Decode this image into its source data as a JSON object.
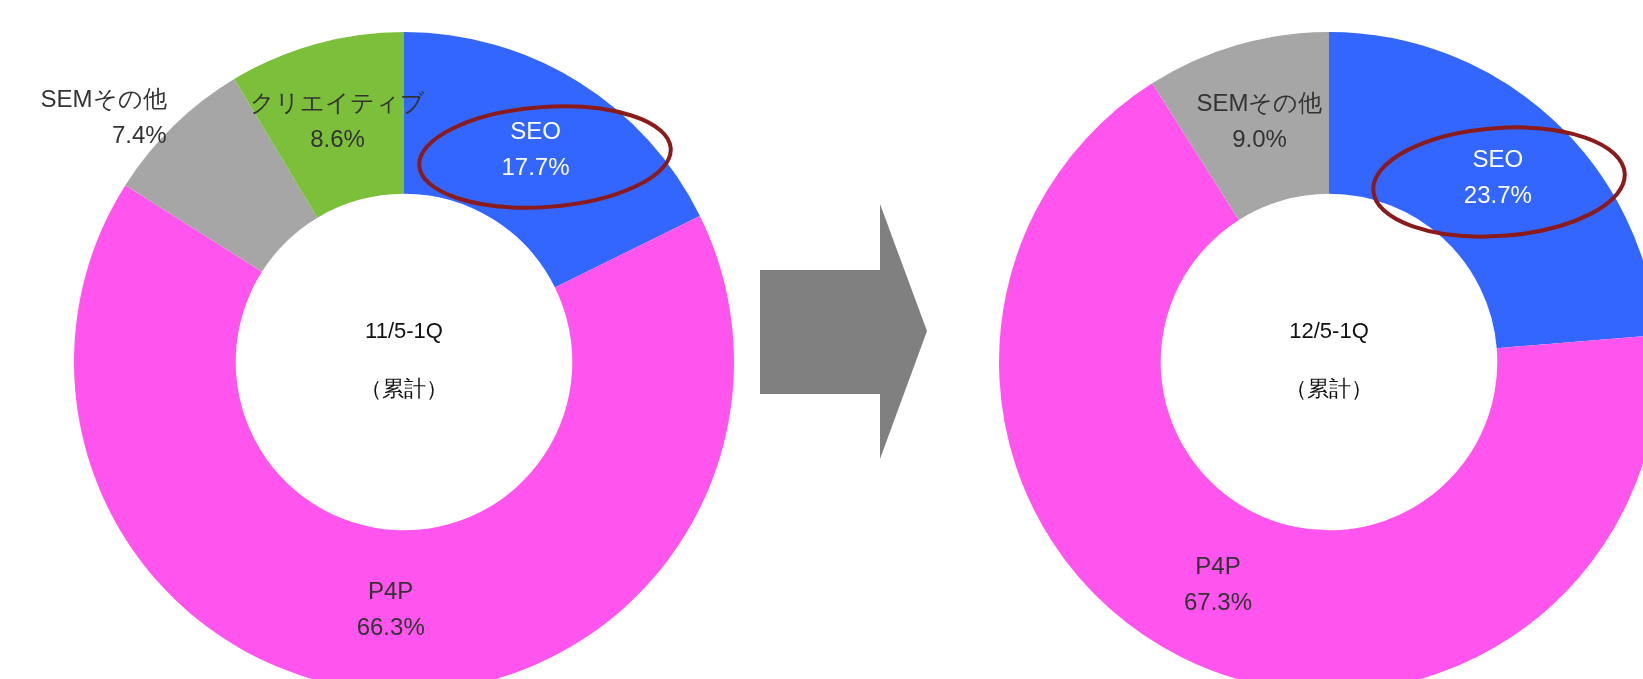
{
  "chart_data": [
    {
      "type": "donut",
      "categories": [
        "SEO",
        "P4P",
        "SEMその他",
        "クリエイティブ"
      ],
      "values": [
        17.7,
        66.3,
        7.4,
        8.6
      ],
      "colors": [
        "#3366ff",
        "#ff55ee",
        "#a6a6a6",
        "#7cbf3a"
      ],
      "value_labels": [
        "17.7%",
        "66.3%",
        "7.4%",
        "8.6%"
      ],
      "annotations": [
        "11/5-1Q",
        "（累計）"
      ],
      "legend": false
    },
    {
      "type": "donut",
      "categories": [
        "SEO",
        "P4P",
        "SEMその他"
      ],
      "values": [
        23.7,
        67.3,
        9.0
      ],
      "colors": [
        "#3366ff",
        "#ff55ee",
        "#a6a6a6"
      ],
      "value_labels": [
        "23.7%",
        "67.3%",
        "9.0%"
      ],
      "annotations": [
        "12/5-1Q",
        "（累計）"
      ],
      "legend": false
    }
  ]
}
